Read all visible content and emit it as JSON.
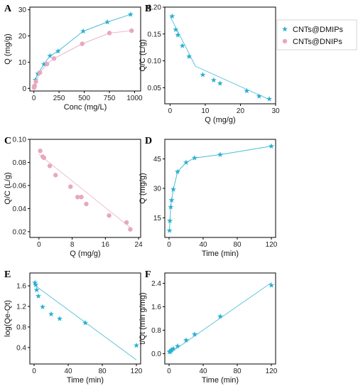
{
  "legend": {
    "entries": [
      {
        "label": "CNTs@DMIPs",
        "color": "#2AAFD0",
        "marker": "star"
      },
      {
        "label": "CNTs@DNIPs",
        "color": "#E8A7C0",
        "marker": "circle"
      }
    ]
  },
  "chart_data": [
    {
      "panel": "A",
      "type": "line",
      "xlabel": "Conc (mg/L)",
      "ylabel": "Q (mg/g)",
      "xlim": [
        -40,
        1060
      ],
      "ylim": [
        -1,
        31
      ],
      "xticks": [
        0,
        250,
        500,
        750,
        1000
      ],
      "yticks": [
        0,
        10,
        20,
        30
      ],
      "series": [
        {
          "name": "CNTs@DMIPs",
          "color": "#2AAFD0",
          "marker": "star",
          "x": [
            5,
            15,
            40,
            100,
            160,
            240,
            490,
            730,
            960
          ],
          "y": [
            0.8,
            3.2,
            5.6,
            9.2,
            12.4,
            14.2,
            21.8,
            25.3,
            28.2
          ]
        },
        {
          "name": "CNTs@DNIPs",
          "color": "#E8A7C0",
          "marker": "circle",
          "x": [
            2,
            8,
            20,
            60,
            130,
            200,
            480,
            750,
            970
          ],
          "y": [
            0.3,
            1.0,
            2.6,
            6.0,
            9.3,
            11.4,
            17.0,
            21.1,
            22.0
          ]
        }
      ]
    },
    {
      "panel": "B",
      "type": "scatter",
      "xlabel": "Q (mg/g)",
      "ylabel": "Q/C (L/g)",
      "xlim": [
        -1.5,
        30
      ],
      "ylim": [
        0.02,
        0.2
      ],
      "xticks": [
        0,
        10,
        20,
        30
      ],
      "yticks": [
        0.05,
        0.1,
        0.15,
        0.2
      ],
      "series": [
        {
          "name": "CNTs@DMIPs",
          "color": "#2AAFD0",
          "marker": "star",
          "x": [
            0.6,
            1.6,
            2.2,
            3.5,
            5.4,
            9.3,
            12.4,
            14.2,
            21.8,
            25.3,
            28.2
          ],
          "y": [
            0.183,
            0.158,
            0.148,
            0.128,
            0.108,
            0.074,
            0.064,
            0.058,
            0.044,
            0.034,
            0.029
          ]
        }
      ],
      "fit_lines": [
        {
          "x": [
            0,
            7.2
          ],
          "y": [
            0.183,
            0.09
          ]
        },
        {
          "x": [
            7.2,
            28.5
          ],
          "y": [
            0.09,
            0.027
          ]
        }
      ]
    },
    {
      "panel": "C",
      "type": "scatter",
      "xlabel": "Q (mg/g)",
      "ylabel": "Q/C (L/g)",
      "xlim": [
        -2.2,
        24.5
      ],
      "ylim": [
        0.015,
        0.1
      ],
      "xticks": [
        0,
        8,
        16,
        24
      ],
      "yticks": [
        0.02,
        0.04,
        0.06,
        0.08,
        0.1
      ],
      "series": [
        {
          "name": "CNTs@DNIPs",
          "color": "#E8A7C0",
          "marker": "circle",
          "x": [
            0.3,
            0.9,
            1.2,
            2.6,
            4.0,
            9.3,
            11.4,
            10.2,
            16.9,
            21.1,
            22.0,
            7.6
          ],
          "y": [
            0.09,
            0.085,
            0.084,
            0.077,
            0.069,
            0.05,
            0.044,
            0.05,
            0.034,
            0.028,
            0.022,
            0.059
          ]
        }
      ],
      "fit_lines": [
        {
          "x": [
            0,
            22.2
          ],
          "y": [
            0.087,
            0.023
          ]
        }
      ]
    },
    {
      "panel": "D",
      "type": "line",
      "xlabel": "Time (min)",
      "ylabel": "Q (mg/g)",
      "xlim": [
        -5,
        125
      ],
      "ylim": [
        5,
        55
      ],
      "xticks": [
        0,
        40,
        80,
        120
      ],
      "yticks": [
        15,
        30,
        45
      ],
      "series": [
        {
          "name": "CNTs@DMIPs",
          "color": "#2AAFD0",
          "marker": "star",
          "x": [
            0.5,
            1,
            2,
            3,
            5,
            10,
            20,
            30,
            60,
            120
          ],
          "y": [
            8.5,
            13.5,
            20.5,
            24,
            29.5,
            38.5,
            43.2,
            45.5,
            47.2,
            51.5
          ]
        }
      ]
    },
    {
      "panel": "E",
      "type": "scatter",
      "xlabel": "Time (min)",
      "ylabel": "log(Qe-Qt)",
      "xlim": [
        -5,
        125
      ],
      "ylim": [
        0.08,
        1.85
      ],
      "xticks": [
        0,
        40,
        80,
        120
      ],
      "yticks": [
        0.4,
        0.8,
        1.2,
        1.6
      ],
      "series": [
        {
          "name": "CNTs@DMIPs",
          "color": "#2AAFD0",
          "marker": "star",
          "x": [
            1,
            2,
            3,
            5,
            10,
            20,
            30,
            60,
            120
          ],
          "y": [
            1.66,
            1.62,
            1.52,
            1.4,
            1.19,
            1.05,
            0.96,
            0.88,
            0.44
          ]
        }
      ],
      "fit_lines": [
        {
          "x": [
            0,
            120
          ],
          "y": [
            1.62,
            0.16
          ]
        }
      ]
    },
    {
      "panel": "F",
      "type": "scatter",
      "xlabel": "Time (min)",
      "ylabel": "t/Qt (min g/mg)",
      "xlim": [
        -5,
        125
      ],
      "ylim": [
        -0.35,
        2.75
      ],
      "xticks": [
        0,
        40,
        80,
        120
      ],
      "yticks": [
        0.0,
        0.8,
        1.6,
        2.4
      ],
      "series": [
        {
          "name": "CNTs@DMIPs",
          "color": "#2AAFD0",
          "marker": "star",
          "x": [
            0.5,
            1,
            2,
            3,
            5,
            10,
            20,
            30,
            60,
            120
          ],
          "y": [
            0.06,
            0.07,
            0.1,
            0.13,
            0.17,
            0.26,
            0.46,
            0.66,
            1.27,
            2.33
          ]
        }
      ],
      "fit_lines": [
        {
          "x": [
            0,
            120
          ],
          "y": [
            0.0,
            2.42
          ]
        }
      ]
    }
  ]
}
